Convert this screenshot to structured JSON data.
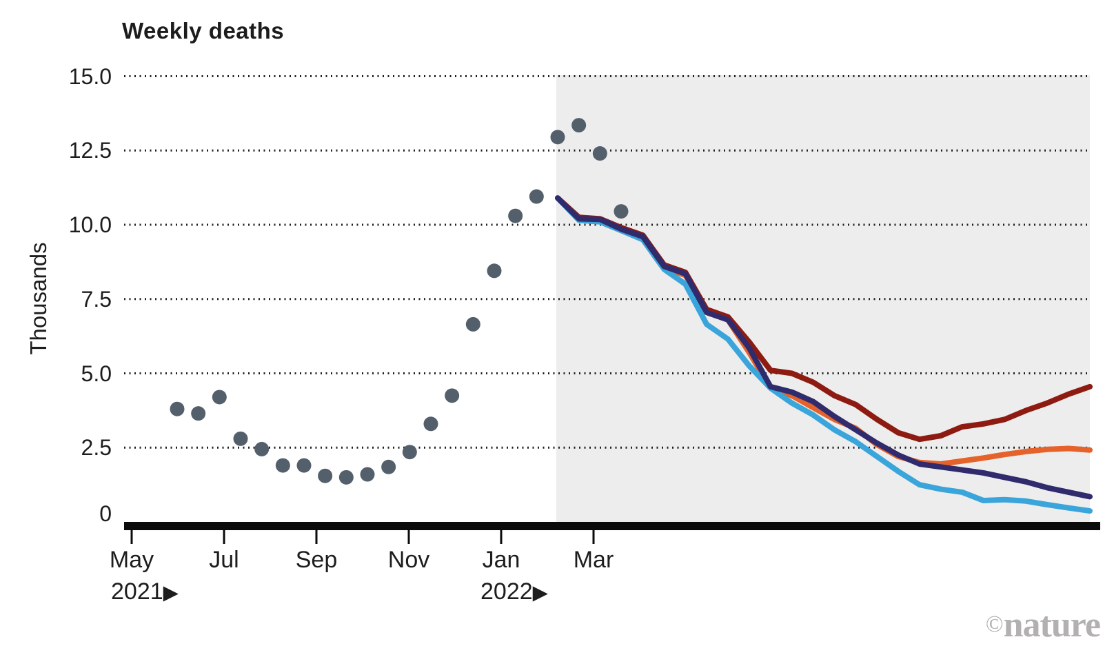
{
  "chart_data": {
    "type": "scatter+line",
    "title": "Weekly deaths",
    "ylabel": "Thousands",
    "ylim": [
      0,
      15
    ],
    "grid": "horizontal-dotted",
    "legend": "none",
    "y_ticks": [
      {
        "label": "15.0",
        "value": 15
      },
      {
        "label": "12.5",
        "value": 12.5
      },
      {
        "label": "10.0",
        "value": 10
      },
      {
        "label": "7.5",
        "value": 7.5
      },
      {
        "label": "5.0",
        "value": 5
      },
      {
        "label": "2.5",
        "value": 2.5
      },
      {
        "label": "0",
        "value": 0
      }
    ],
    "x_ticks": [
      {
        "label": "May",
        "month_offset": 0
      },
      {
        "label": "Jul",
        "month_offset": 2
      },
      {
        "label": "Sep",
        "month_offset": 4
      },
      {
        "label": "Nov",
        "month_offset": 6
      },
      {
        "label": "Jan",
        "month_offset": 8
      },
      {
        "label": "Mar",
        "month_offset": 10
      }
    ],
    "x_year_labels": [
      {
        "label": "2021",
        "arrow": "▶",
        "at_month_offset": 0
      },
      {
        "label": "2022",
        "arrow": "▶",
        "at_month_offset": 8
      }
    ],
    "observed_dots": {
      "name": "observed-weekly-deaths",
      "color": "#53606c",
      "x_unit": "weeks",
      "values": [
        3.8,
        3.65,
        4.2,
        2.8,
        2.45,
        1.9,
        1.9,
        1.55,
        1.5,
        1.6,
        1.85,
        2.35,
        3.3,
        4.25,
        6.65,
        8.45,
        10.3,
        10.95,
        12.95,
        13.35,
        12.4,
        10.45
      ]
    },
    "forecast": {
      "shaded_region_color": "#ededed",
      "starts_at_observed_week_index": 18,
      "series": [
        {
          "name": "dark-red-line",
          "color": "#8e1b12",
          "values": [
            10.9,
            10.25,
            10.2,
            9.9,
            9.65,
            8.65,
            8.4,
            7.15,
            6.9,
            6.05,
            5.1,
            5.0,
            4.7,
            4.25,
            3.95,
            3.45,
            3.0,
            2.78,
            2.9,
            3.2,
            3.3,
            3.45,
            3.75,
            4.0,
            4.3,
            4.55
          ]
        },
        {
          "name": "orange-line",
          "color": "#e5622a",
          "values": [
            10.9,
            10.2,
            10.1,
            9.8,
            9.55,
            8.55,
            8.3,
            7.05,
            6.8,
            5.7,
            4.5,
            4.25,
            3.85,
            3.45,
            3.15,
            2.6,
            2.2,
            2.0,
            1.95,
            2.05,
            2.15,
            2.27,
            2.37,
            2.44,
            2.47,
            2.42
          ]
        },
        {
          "name": "light-blue-line",
          "color": "#3aa5da",
          "values": [
            10.9,
            10.15,
            10.1,
            9.8,
            9.5,
            8.5,
            8.0,
            6.65,
            6.15,
            5.25,
            4.5,
            4.0,
            3.6,
            3.1,
            2.7,
            2.2,
            1.7,
            1.25,
            1.1,
            1.0,
            0.72,
            0.75,
            0.7,
            0.58,
            0.47,
            0.37
          ]
        },
        {
          "name": "navy-line",
          "color": "#2f2b6d",
          "values": [
            10.9,
            10.2,
            10.18,
            9.85,
            9.6,
            8.6,
            8.35,
            7.05,
            6.8,
            5.85,
            4.55,
            4.37,
            4.05,
            3.55,
            3.1,
            2.65,
            2.25,
            1.95,
            1.85,
            1.75,
            1.65,
            1.5,
            1.35,
            1.15,
            1.0,
            0.85
          ]
        }
      ]
    }
  },
  "credit": {
    "symbol": "©",
    "text": "nature"
  }
}
